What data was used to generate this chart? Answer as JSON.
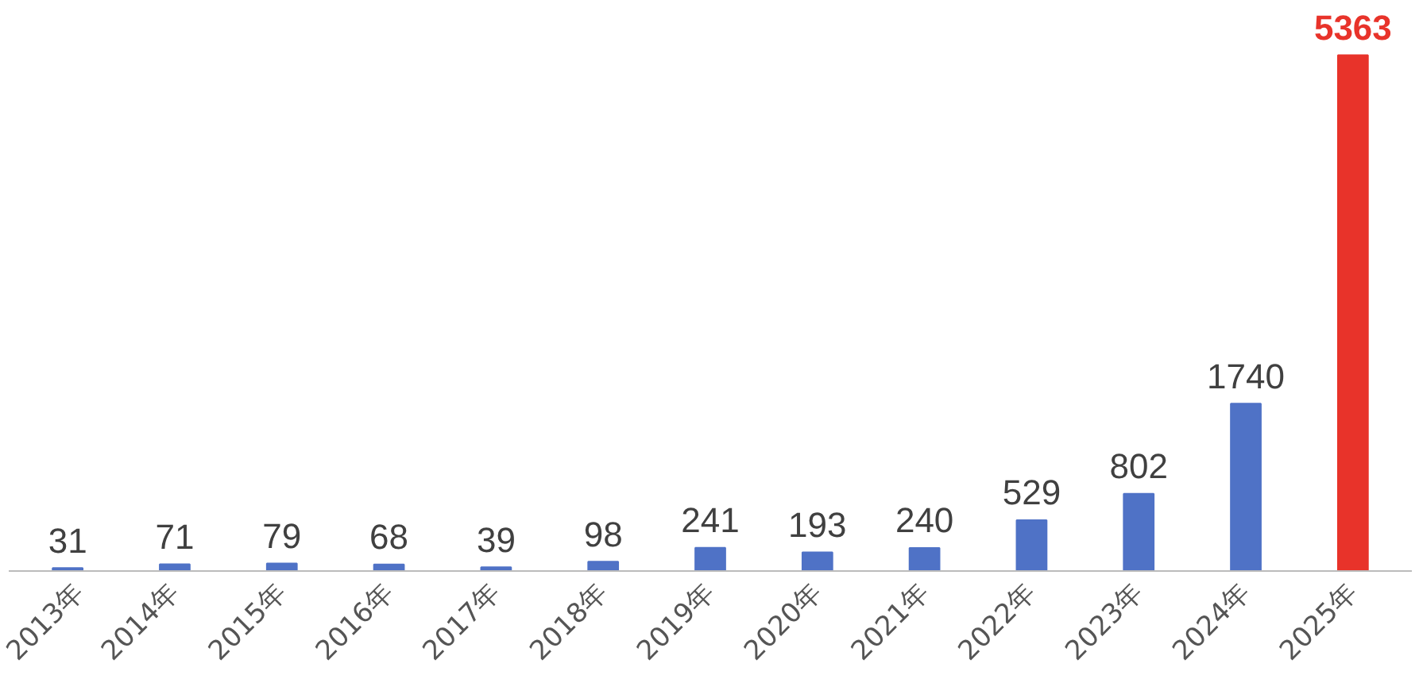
{
  "chart_data": {
    "type": "bar",
    "categories": [
      "2013年",
      "2014年",
      "2015年",
      "2016年",
      "2017年",
      "2018年",
      "2019年",
      "2020年",
      "2021年",
      "2022年",
      "2023年",
      "2024年",
      "2025年"
    ],
    "values": [
      31,
      71,
      79,
      68,
      39,
      98,
      241,
      193,
      240,
      529,
      802,
      1740,
      5363
    ],
    "colors": [
      "#4f72c6",
      "#4f72c6",
      "#4f72c6",
      "#4f72c6",
      "#4f72c6",
      "#4f72c6",
      "#4f72c6",
      "#4f72c6",
      "#4f72c6",
      "#4f72c6",
      "#4f72c6",
      "#4f72c6",
      "#e8332a"
    ],
    "data_labels": true,
    "grid": false
  }
}
